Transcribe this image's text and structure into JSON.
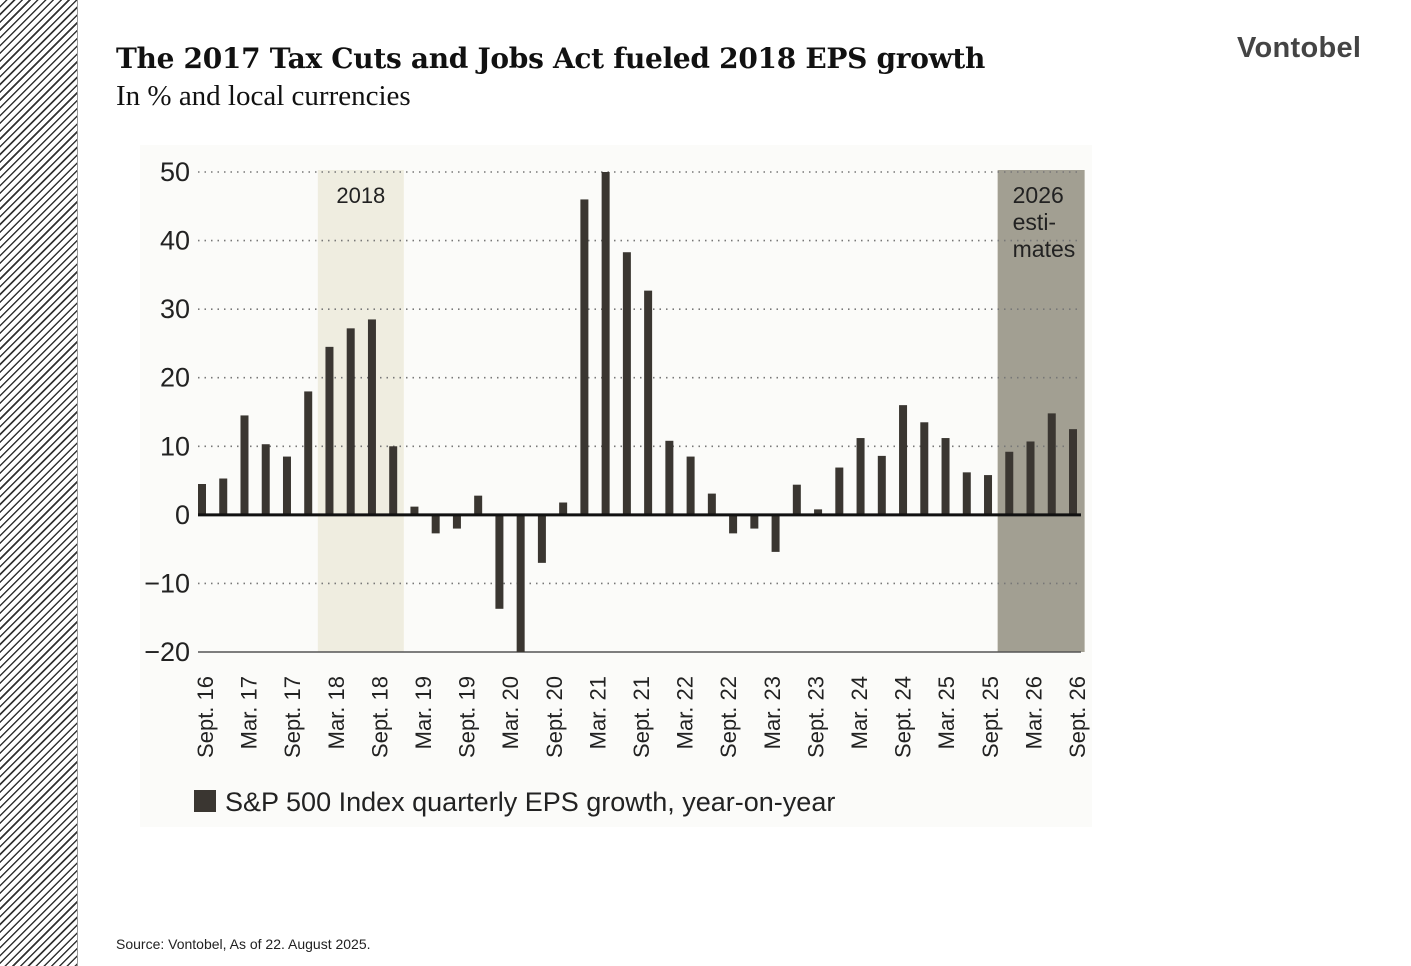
{
  "header": {
    "title": "The 2017 Tax Cuts and Jobs Act fueled 2018 EPS growth",
    "subtitle": "In % and local currencies",
    "logo": "Vontobel"
  },
  "footer": {
    "source": "Source: Vontobel, As of 22. August 2025."
  },
  "chart_data": {
    "type": "bar",
    "title": "",
    "xlabel": "",
    "ylabel": "",
    "ylim": [
      -20,
      50
    ],
    "yticks": [
      50,
      40,
      30,
      20,
      10,
      0,
      -10,
      -20
    ],
    "ytick_labels": [
      "50",
      "40",
      "30",
      "20",
      "10",
      "0",
      "−10",
      "−20"
    ],
    "grid": "horizontal dotted",
    "x_tick_labels": [
      "Sept. 16",
      "Mar. 17",
      "Sept. 17",
      "Mar. 18",
      "Sept. 18",
      "Mar. 19",
      "Sept. 19",
      "Mar. 20",
      "Sept. 20",
      "Mar. 21",
      "Sept. 21",
      "Mar. 22",
      "Sept. 22",
      "Mar. 23",
      "Sept. 23",
      "Mar. 24",
      "Sept. 24",
      "Mar. 25",
      "Sept. 25",
      "Mar. 26",
      "Sept. 26"
    ],
    "series": [
      {
        "name": "S&P 500 Index quarterly EPS growth, year-on-year",
        "color": "#3a3631",
        "values": [
          4.5,
          5.3,
          14.5,
          10.3,
          8.5,
          18,
          24.5,
          27.2,
          28.5,
          10,
          1.2,
          -2.7,
          -2,
          2.8,
          -13.7,
          -20,
          -7,
          1.8,
          46,
          50,
          38.3,
          32.7,
          10.8,
          8.5,
          3.1,
          -2.7,
          -2,
          -5.4,
          4.4,
          0.8,
          6.9,
          11.2,
          8.6,
          16,
          13.5,
          11.2,
          6.2,
          5.8,
          9.2,
          10.7,
          14.8,
          12.5
        ]
      }
    ],
    "highlights": [
      {
        "label": "2018",
        "bars": [
          6,
          9
        ],
        "color": "#efede0"
      },
      {
        "label_lines": [
          "2026",
          "esti-",
          "mates"
        ],
        "bars": [
          38,
          41
        ],
        "color": "#a29f92"
      }
    ],
    "legend": {
      "position": "bottom-left",
      "label": "S&P 500 Index quarterly EPS growth, year-on-year"
    }
  }
}
